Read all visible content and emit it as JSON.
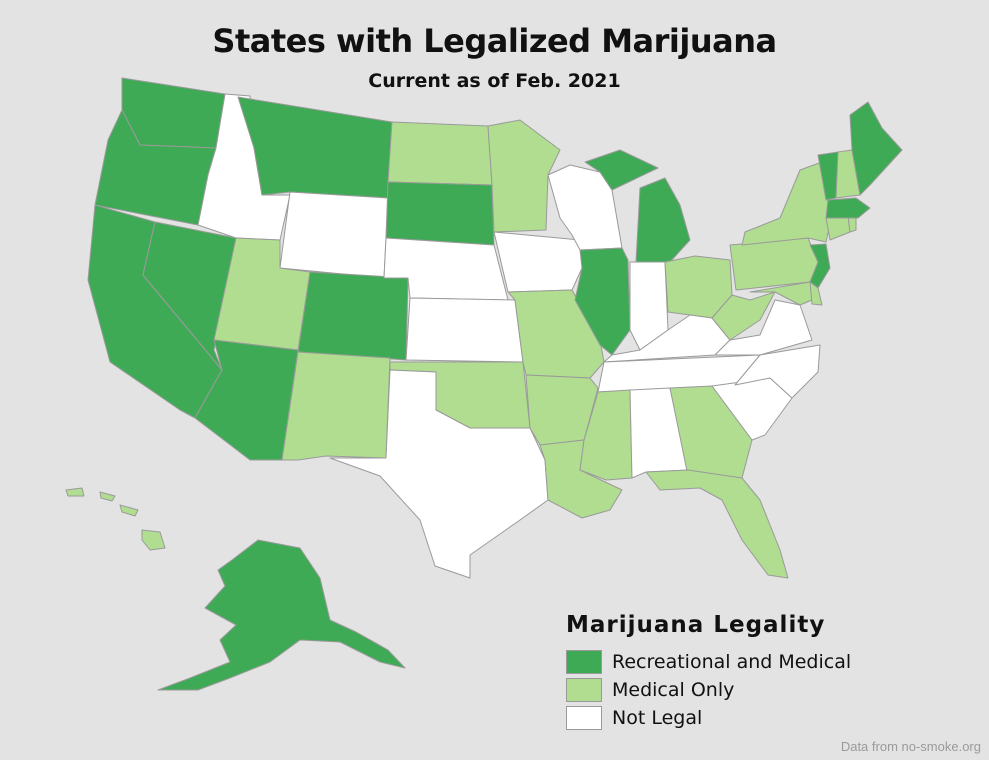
{
  "title": "States with Legalized Marijuana",
  "subtitle": "Current as of Feb. 2021",
  "legend": {
    "title": "Marijuana Legality",
    "items": [
      {
        "key": "rec",
        "label": "Recreational and Medical",
        "color": "#3faa56"
      },
      {
        "key": "med",
        "label": "Medical Only",
        "color": "#b0dd8f"
      },
      {
        "key": "none",
        "label": "Not Legal",
        "color": "#ffffff"
      }
    ]
  },
  "source": "Data from no-smoke.org",
  "states": {
    "WA": "rec",
    "OR": "rec",
    "CA": "rec",
    "NV": "rec",
    "AZ": "rec",
    "MT": "rec",
    "CO": "rec",
    "SD": "rec",
    "IL": "rec",
    "MI": "rec",
    "ME": "rec",
    "VT": "rec",
    "MA": "rec",
    "NJ": "rec",
    "AK": "rec",
    "UT": "med",
    "NM": "med",
    "ND": "med",
    "MN": "med",
    "OK": "med",
    "MO": "med",
    "AR": "med",
    "LA": "med",
    "MS": "med",
    "FL": "med",
    "GA": "med",
    "OH": "med",
    "PA": "med",
    "WV": "med",
    "NY": "med",
    "NH": "med",
    "CT": "med",
    "RI": "med",
    "MD": "med",
    "DE": "med",
    "HI": "med",
    "ID": "none",
    "WY": "none",
    "NE": "none",
    "KS": "none",
    "TX": "none",
    "IA": "none",
    "WI": "none",
    "IN": "none",
    "KY": "none",
    "TN": "none",
    "AL": "none",
    "NC": "none",
    "SC": "none",
    "VA": "none"
  }
}
